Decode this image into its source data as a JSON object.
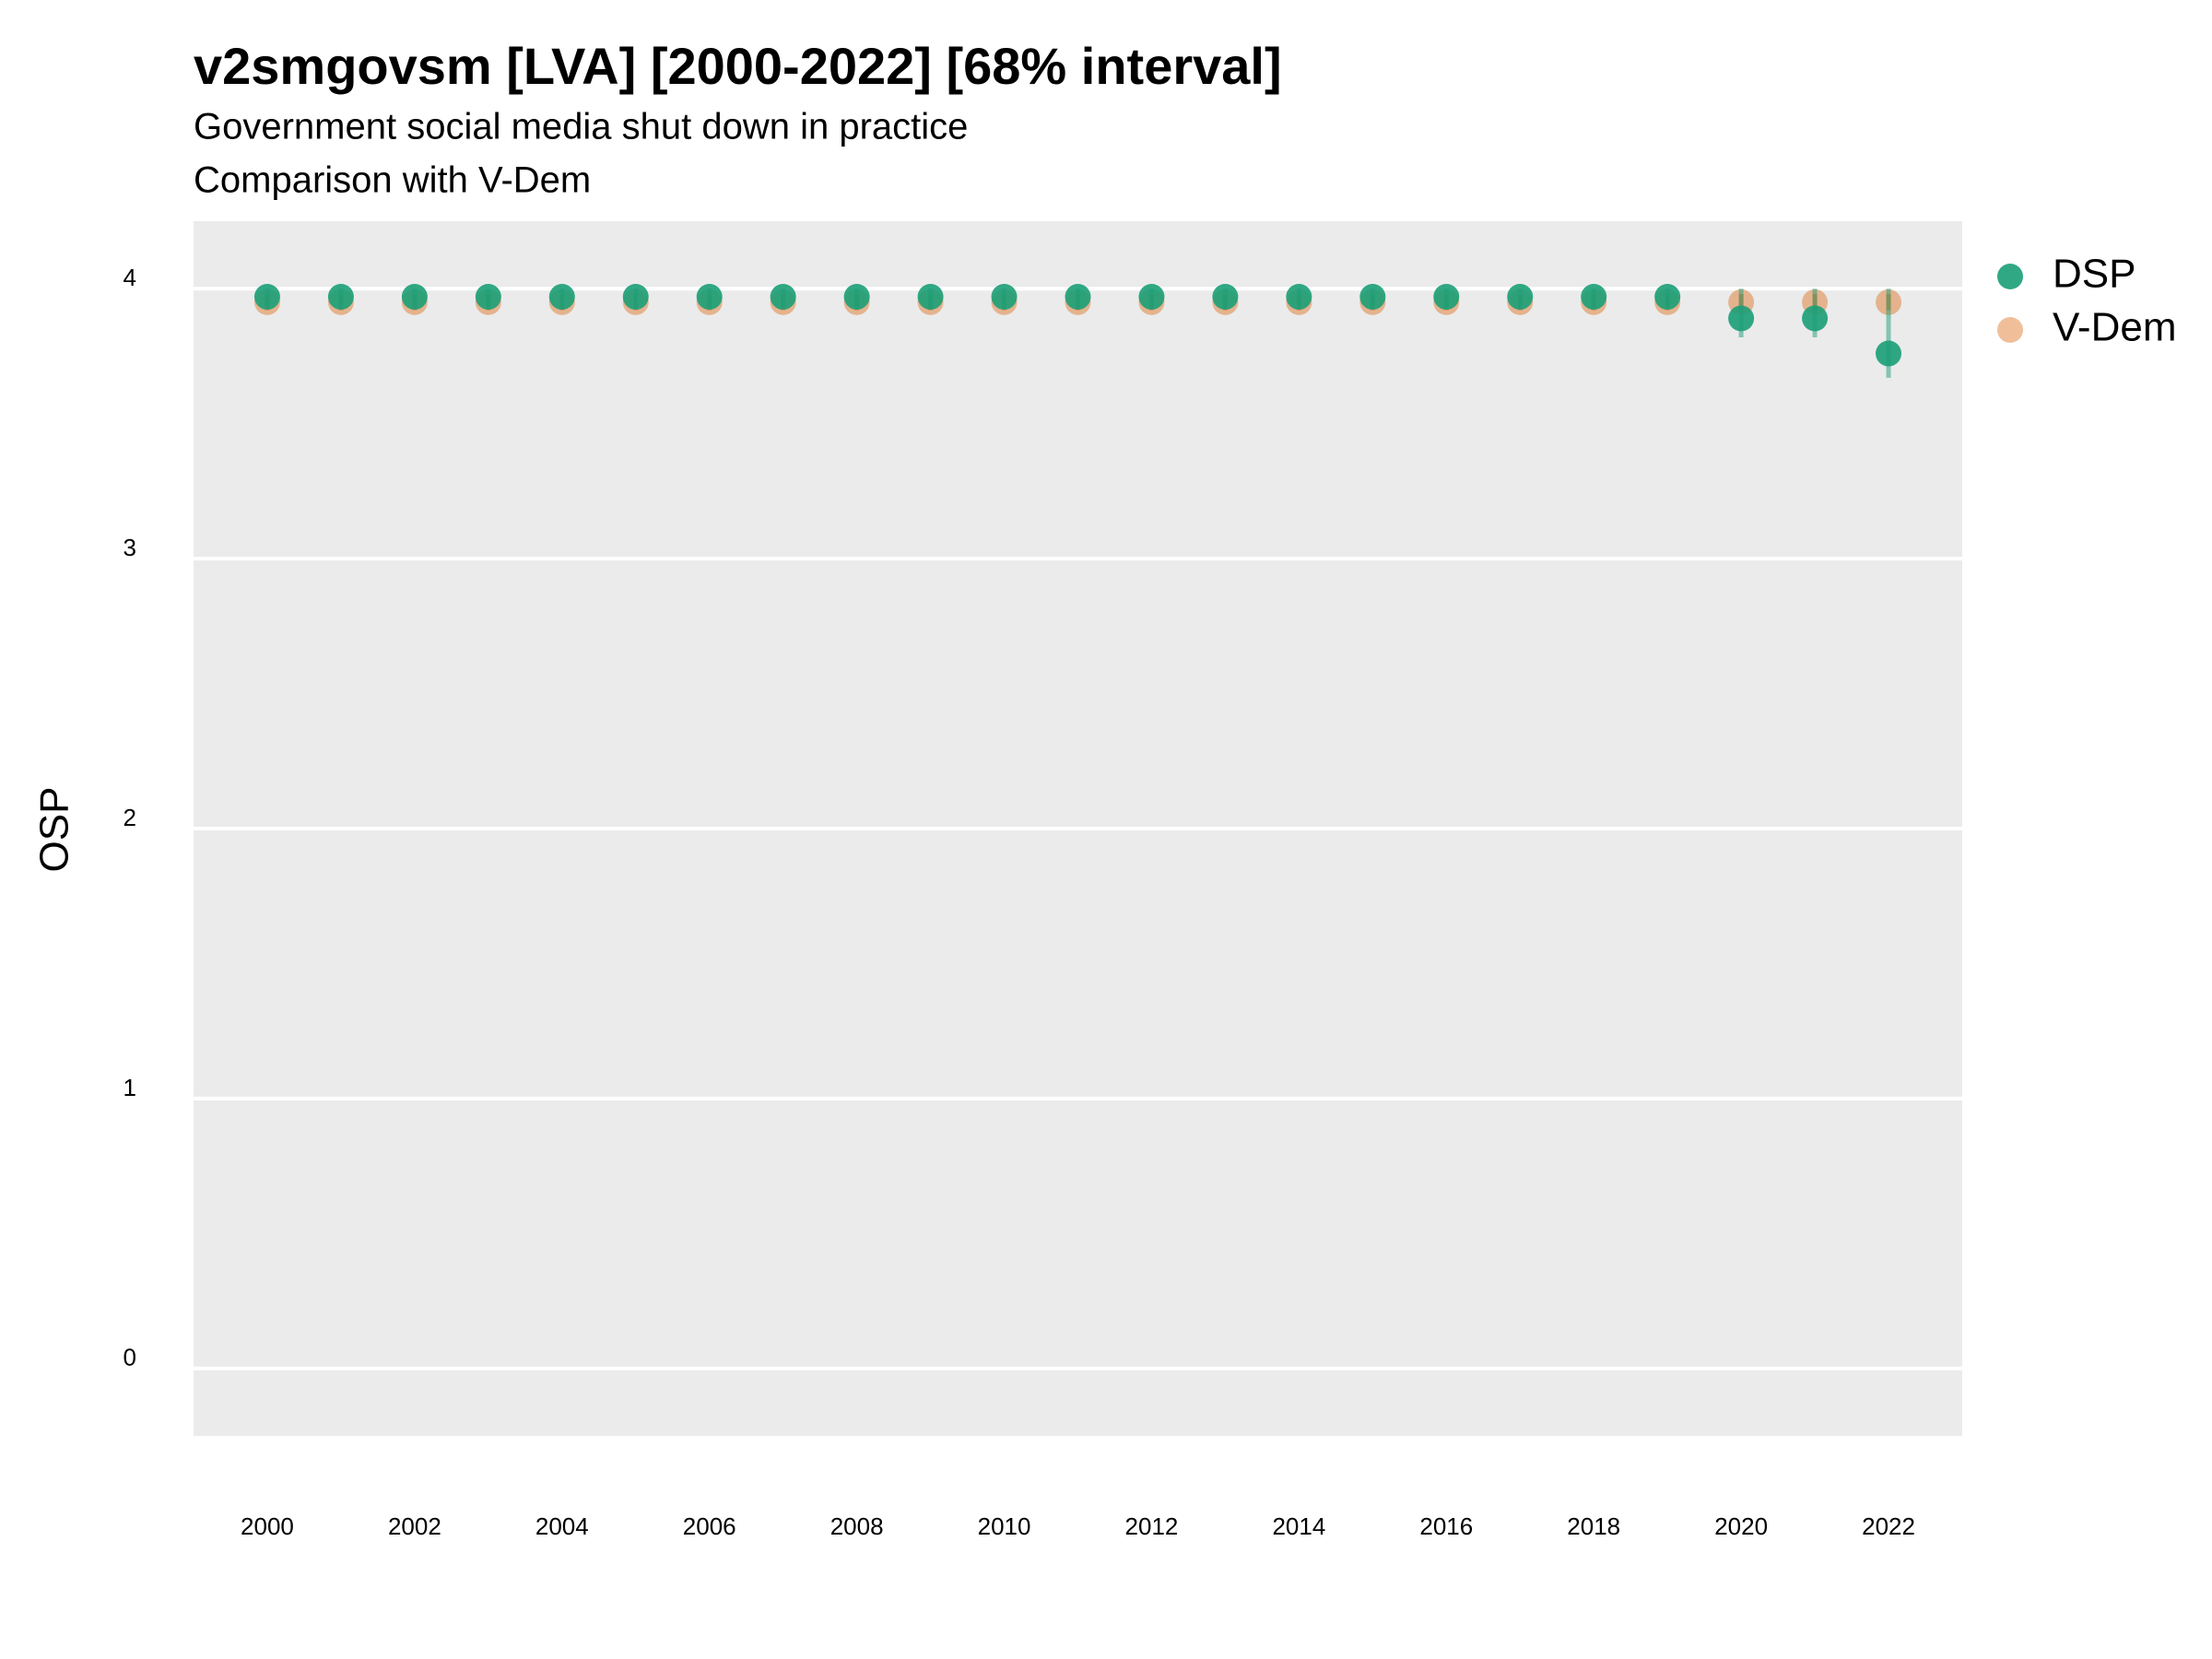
{
  "chart_data": {
    "type": "pointrange",
    "title": "v2smgovsm [LVA] [2000-2022] [68% interval]",
    "subtitle": [
      "Government social media shut down in practice",
      "Comparison with V-Dem"
    ],
    "ylabel": "OSP",
    "x": [
      2000,
      2001,
      2002,
      2003,
      2004,
      2005,
      2006,
      2007,
      2008,
      2009,
      2010,
      2011,
      2012,
      2013,
      2014,
      2015,
      2016,
      2017,
      2018,
      2019,
      2020,
      2021,
      2022
    ],
    "series": [
      {
        "name": "V-Dem",
        "color": "#d95f02",
        "values": [
          3.95,
          3.95,
          3.95,
          3.95,
          3.95,
          3.95,
          3.95,
          3.95,
          3.95,
          3.95,
          3.95,
          3.95,
          3.95,
          3.95,
          3.95,
          3.95,
          3.95,
          3.95,
          3.95,
          3.95,
          3.95,
          3.95,
          3.95
        ],
        "lower": [
          3.92,
          3.92,
          3.92,
          3.92,
          3.92,
          3.92,
          3.92,
          3.92,
          3.92,
          3.92,
          3.92,
          3.92,
          3.92,
          3.92,
          3.92,
          3.92,
          3.92,
          3.92,
          3.92,
          3.92,
          3.92,
          3.92,
          3.92
        ],
        "upper": [
          3.98,
          3.98,
          3.98,
          3.98,
          3.98,
          3.98,
          3.98,
          3.98,
          3.98,
          3.98,
          3.98,
          3.98,
          3.98,
          3.98,
          3.98,
          3.98,
          3.98,
          3.98,
          3.98,
          3.98,
          3.98,
          3.98,
          3.98
        ]
      },
      {
        "name": "DSP",
        "color": "#1b9e77",
        "values": [
          3.97,
          3.97,
          3.97,
          3.97,
          3.97,
          3.97,
          3.97,
          3.97,
          3.97,
          3.97,
          3.97,
          3.97,
          3.97,
          3.97,
          3.97,
          3.97,
          3.97,
          3.97,
          3.97,
          3.97,
          3.89,
          3.89,
          3.76
        ],
        "lower": [
          3.93,
          3.93,
          3.93,
          3.93,
          3.93,
          3.93,
          3.93,
          3.93,
          3.93,
          3.93,
          3.93,
          3.93,
          3.93,
          3.93,
          3.93,
          3.93,
          3.93,
          3.93,
          3.93,
          3.93,
          3.82,
          3.82,
          3.67
        ],
        "upper": [
          4,
          4,
          4,
          4,
          4,
          4,
          4,
          4,
          4,
          4,
          4,
          4,
          4,
          4,
          4,
          4,
          4,
          4,
          4,
          4,
          4,
          4,
          4
        ]
      }
    ],
    "xlim": [
      1999,
      2023
    ],
    "xticks": [
      2000,
      2002,
      2004,
      2006,
      2008,
      2010,
      2012,
      2014,
      2016,
      2018,
      2020,
      2022
    ],
    "ylim": [
      -0.25,
      4.25
    ],
    "yticks": [
      0,
      1,
      2,
      3,
      4
    ],
    "grid": true,
    "legend": "right"
  }
}
